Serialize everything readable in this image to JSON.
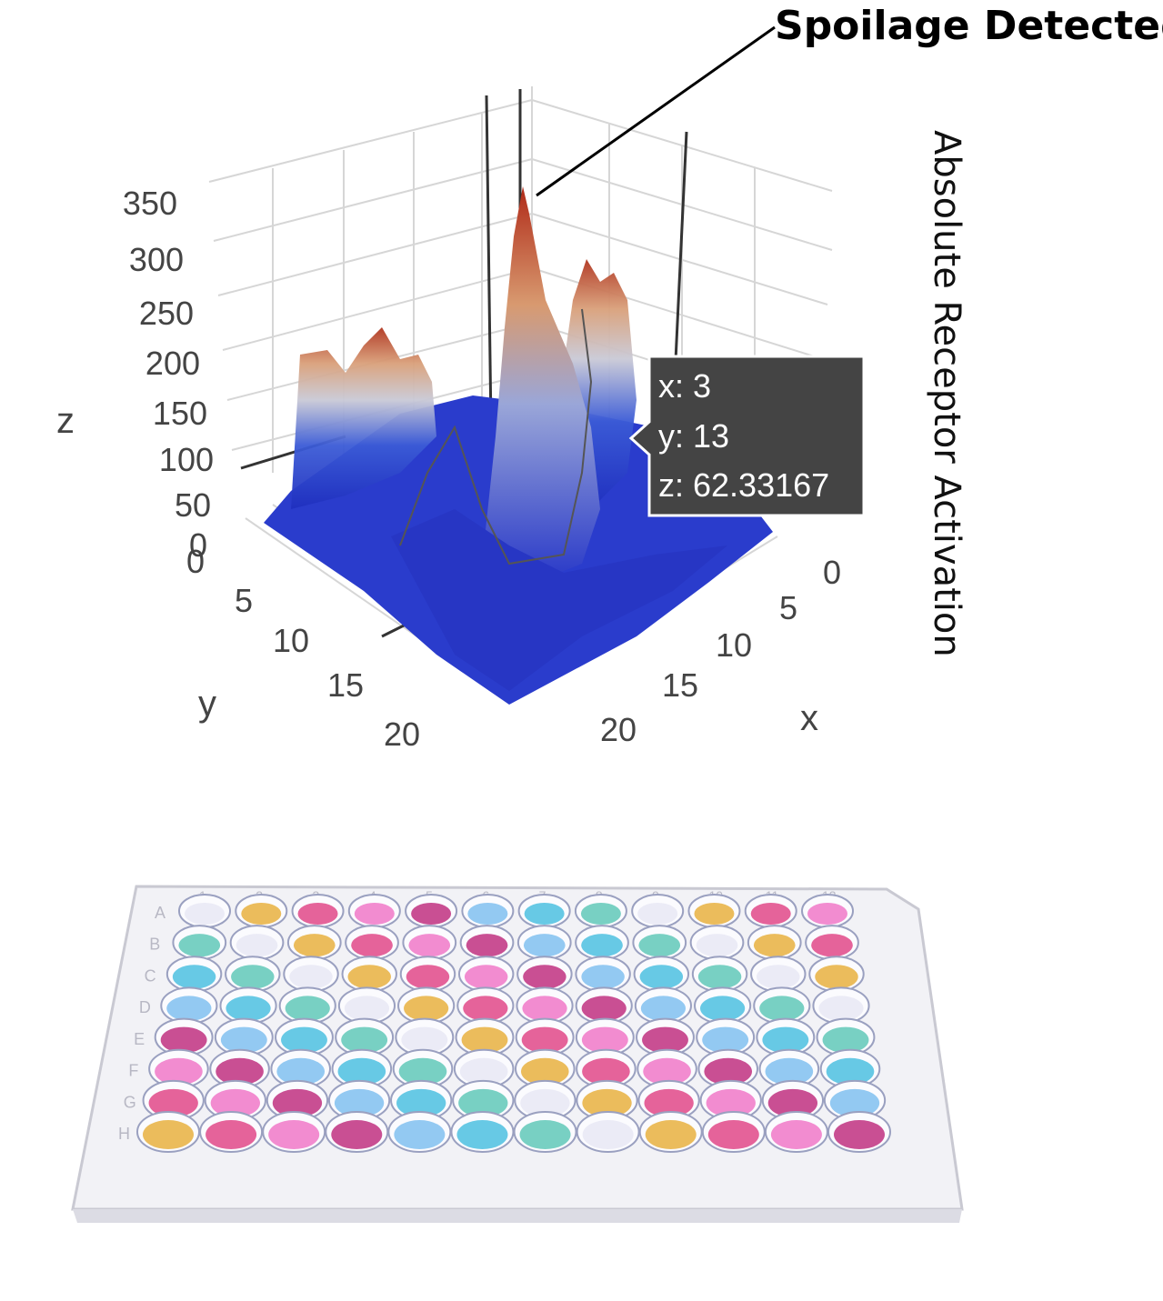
{
  "chart_data": {
    "type": "surface",
    "axes": {
      "x": {
        "title": "x",
        "ticks": [
          "0",
          "5",
          "10",
          "15",
          "20"
        ]
      },
      "y": {
        "title": "y",
        "ticks": [
          "0",
          "5",
          "10",
          "15",
          "20"
        ]
      },
      "z": {
        "title": "z",
        "ticks": [
          "0",
          "50",
          "100",
          "150",
          "200",
          "250",
          "300",
          "350"
        ]
      }
    },
    "side_label": "Absolute Receptor Activation",
    "annotation": "Spoilage Detected",
    "peak": {
      "z": 355
    },
    "tooltip": {
      "x_line": "x: 3",
      "y_line": "y: 13",
      "z_line": "z: 62.33167"
    },
    "colorscale": [
      "#1f2fbf",
      "#3b5bd6",
      "#c9c9d6",
      "#d9a07a",
      "#b0351f"
    ]
  },
  "plate": {
    "columns": [
      "1",
      "2",
      "3",
      "4",
      "5",
      "6",
      "7",
      "8",
      "9",
      "10",
      "11",
      "12"
    ],
    "rows": [
      "A",
      "B",
      "C",
      "D",
      "E",
      "F",
      "G",
      "H"
    ],
    "well_colors": [
      "#e8e8f4",
      "#f078c8",
      "#4cc0e0",
      "#e8b040",
      "#c03080",
      "#60c8b8",
      "#e04888",
      "#80c0f0"
    ]
  }
}
